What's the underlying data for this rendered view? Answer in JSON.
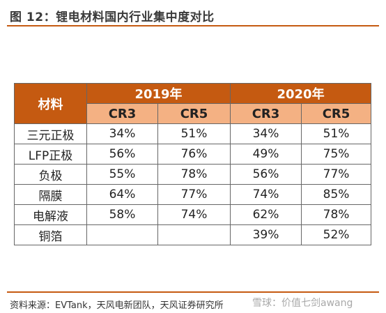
{
  "figure": {
    "title": "图 12：锂电材料国内行业集中度对比",
    "source": "资料来源：EVTank，天风电新团队，天风证券研究所",
    "watermark": "雪球：价值七剑awang"
  },
  "table": {
    "material_header": "材料",
    "years": [
      "2019年",
      "2020年"
    ],
    "sub_headers": [
      "CR3",
      "CR5",
      "CR3",
      "CR5"
    ],
    "rows": [
      {
        "label": "三元正极",
        "values": [
          "34%",
          "51%",
          "34%",
          "51%"
        ]
      },
      {
        "label": "LFP正极",
        "values": [
          "56%",
          "76%",
          "49%",
          "75%"
        ]
      },
      {
        "label": "负极",
        "values": [
          "55%",
          "78%",
          "56%",
          "77%"
        ]
      },
      {
        "label": "隔膜",
        "values": [
          "64%",
          "77%",
          "74%",
          "85%"
        ]
      },
      {
        "label": "电解液",
        "values": [
          "58%",
          "74%",
          "62%",
          "78%"
        ]
      },
      {
        "label": "铜箔",
        "values": [
          "",
          "",
          "39%",
          "52%"
        ]
      }
    ]
  },
  "colors": {
    "header_dark": "#c55a11",
    "header_light": "#f4b183",
    "rule": "#c55a11"
  }
}
